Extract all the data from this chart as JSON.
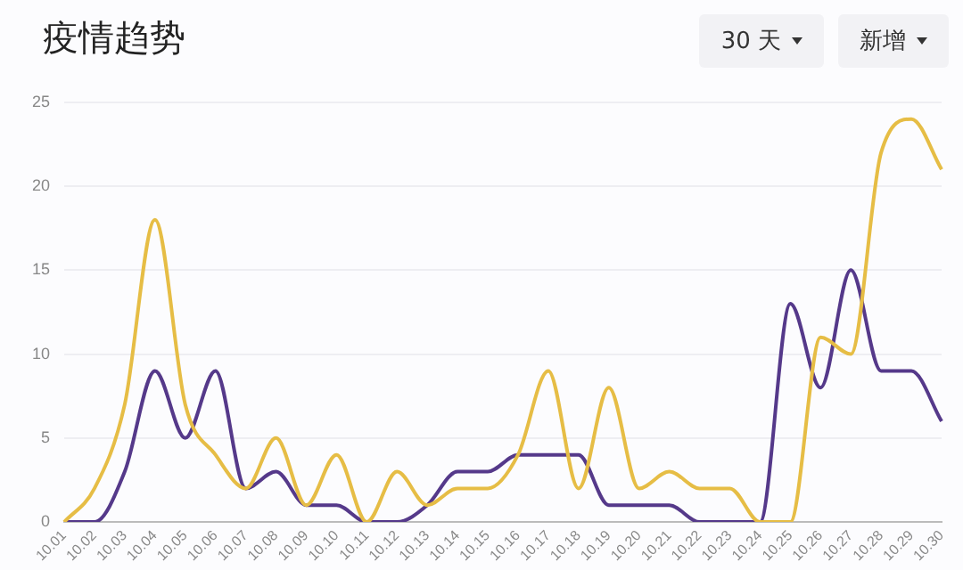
{
  "chart_data": {
    "type": "line",
    "title": "疫情趋势",
    "annotations": [
      "30 天",
      "新增"
    ],
    "categories": [
      "10.01",
      "10.02",
      "10.03",
      "10.04",
      "10.05",
      "10.06",
      "10.07",
      "10.08",
      "10.09",
      "10.10",
      "10.11",
      "10.12",
      "10.13",
      "10.14",
      "10.15",
      "10.16",
      "10.17",
      "10.18",
      "10.19",
      "10.20",
      "10.21",
      "10.22",
      "10.23",
      "10.24",
      "10.25",
      "10.26",
      "10.27",
      "10.28",
      "10.29",
      "10.30"
    ],
    "series": [
      {
        "color": "#e6bd45",
        "values": [
          0,
          2,
          7,
          18,
          7,
          4,
          2,
          5,
          1,
          4,
          0,
          3,
          1,
          2,
          2,
          4,
          9,
          2,
          8,
          2,
          3,
          2,
          2,
          0,
          0,
          11,
          10,
          22,
          24,
          21
        ]
      },
      {
        "color": "#55398a",
        "values": [
          0,
          0,
          3,
          9,
          5,
          9,
          2,
          3,
          1,
          1,
          0,
          0,
          1,
          3,
          3,
          4,
          4,
          4,
          1,
          1,
          1,
          0,
          0,
          0,
          13,
          8,
          15,
          9,
          9,
          6
        ]
      }
    ],
    "ylim": [
      0,
      25
    ],
    "yticks": [
      0,
      5,
      10,
      15,
      20,
      25
    ],
    "grid": "y",
    "legend": false,
    "marker": "none"
  }
}
